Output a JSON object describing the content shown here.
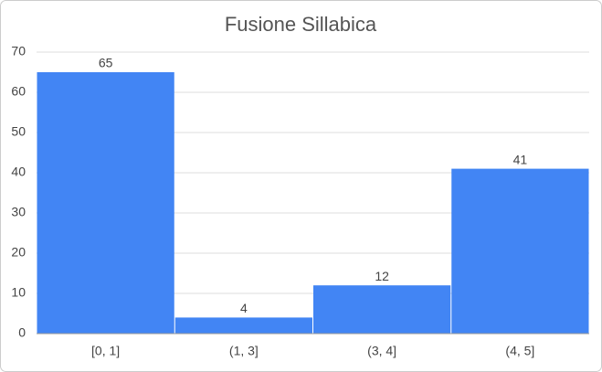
{
  "chart_data": {
    "type": "bar",
    "title": "Fusione Sillabica",
    "categories": [
      "[0, 1]",
      "(1, 3]",
      "(3, 4]",
      "(4, 5]"
    ],
    "values": [
      65,
      4,
      12,
      41
    ],
    "color": "#4285f4",
    "ylim": [
      0,
      70
    ],
    "yticks": [
      0,
      10,
      20,
      30,
      40,
      50,
      60,
      70
    ],
    "grid": true
  }
}
